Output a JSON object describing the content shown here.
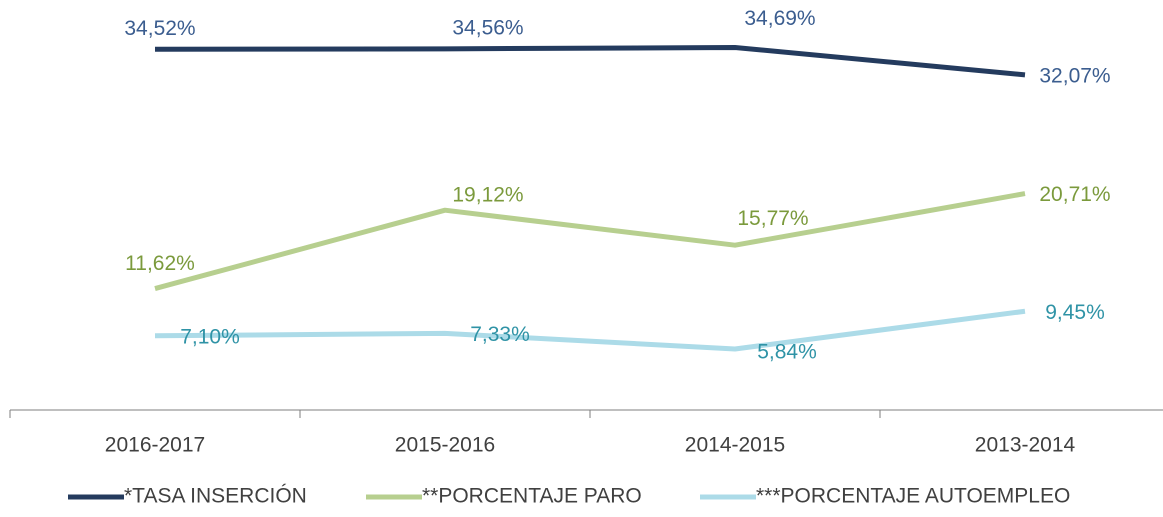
{
  "chart_data": {
    "type": "line",
    "categories": [
      "2016-2017",
      "2015-2016",
      "2014-2015",
      "2013-2014"
    ],
    "series": [
      {
        "name": "*TASA INSERCIÓN",
        "color": "#243b5e",
        "label_color": "#3b5d8f",
        "values": [
          34.52,
          34.56,
          34.69,
          32.07
        ],
        "value_labels": [
          "34,52%",
          "34,56%",
          "34,69%",
          "32,07%"
        ]
      },
      {
        "name": "**PORCENTAJE PARO",
        "color": "#b7cf8f",
        "label_color": "#7b9a3c",
        "values": [
          11.62,
          19.12,
          15.77,
          20.71
        ],
        "value_labels": [
          "11,62%",
          "19,12%",
          "15,77%",
          "20,71%"
        ]
      },
      {
        "name": "***PORCENTAJE AUTOEMPLEO",
        "color": "#acdbe8",
        "label_color": "#2f93a6",
        "values": [
          7.1,
          7.33,
          5.84,
          9.45
        ],
        "value_labels": [
          "7,10%",
          "7,33%",
          "5,84%",
          "9,45%"
        ]
      }
    ],
    "ylim": [
      0,
      40
    ],
    "legend": "bottom"
  }
}
